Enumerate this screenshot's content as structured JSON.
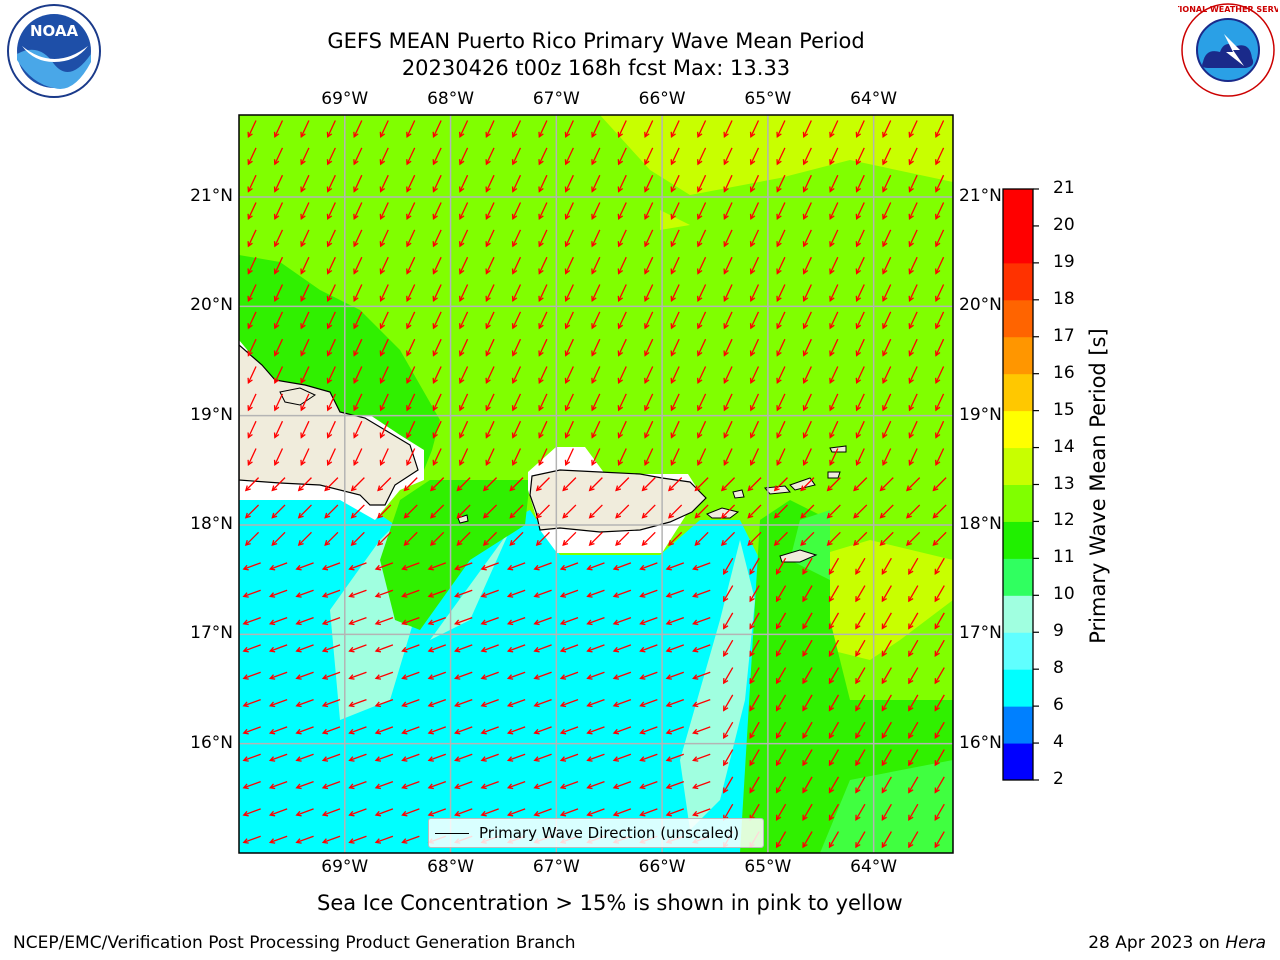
{
  "title": {
    "line1": "GEFS MEAN Puerto Rico Primary Wave Mean Period",
    "line2": "20230426 t00z 168h fcst   Max: 13.33"
  },
  "lon_labels": [
    "69°W",
    "68°W",
    "67°W",
    "66°W",
    "65°W",
    "64°W"
  ],
  "lat_labels": [
    "21°N",
    "20°N",
    "19°N",
    "18°N",
    "17°N",
    "16°N"
  ],
  "map_extent": {
    "lon": [
      -70.0,
      -63.25
    ],
    "lat": [
      15.0,
      21.75
    ]
  },
  "grid_lons": [
    -69,
    -68,
    -67,
    -66,
    -65,
    -64
  ],
  "grid_lats": [
    21,
    20,
    19,
    18,
    17,
    16
  ],
  "legend": {
    "label": "Primary Wave Direction (unscaled)"
  },
  "colorbar": {
    "title": "Primary Wave Mean Period [s]",
    "ticks": [
      "2",
      "4",
      "6",
      "8",
      "9",
      "10",
      "11",
      "12",
      "13",
      "14",
      "15",
      "16",
      "17",
      "18",
      "19",
      "20",
      "21"
    ],
    "colors": [
      "#0000ff",
      "#0080ff",
      "#00ffff",
      "#60ffff",
      "#a0ffe0",
      "#30ff60",
      "#20f000",
      "#80ff00",
      "#c8ff00",
      "#ffff00",
      "#ffc800",
      "#ff9600",
      "#ff6400",
      "#ff3200",
      "#ff0000",
      "#ff0000"
    ]
  },
  "field_colors": {
    "cyan": "#00ffff",
    "light_cyan": "#a0ffe0",
    "mid_cyan": "#60ffff",
    "green": "#80ff00",
    "dark_green": "#30ff00",
    "yellow_green": "#c8ff00",
    "med_green": "#40ff40",
    "land": "#f0ecdc",
    "arrow": "#ff0000"
  },
  "footnote": "Sea Ice Concentration > 15% is shown in pink to yellow",
  "footer": {
    "left": "NCEP/EMC/Verification Post Processing Product Generation Branch",
    "right_prefix": "28 Apr 2023 on ",
    "right_host": "Hera"
  },
  "logos": {
    "left": "NOAA",
    "right": "NATIONAL WEATHER SERVICE"
  }
}
